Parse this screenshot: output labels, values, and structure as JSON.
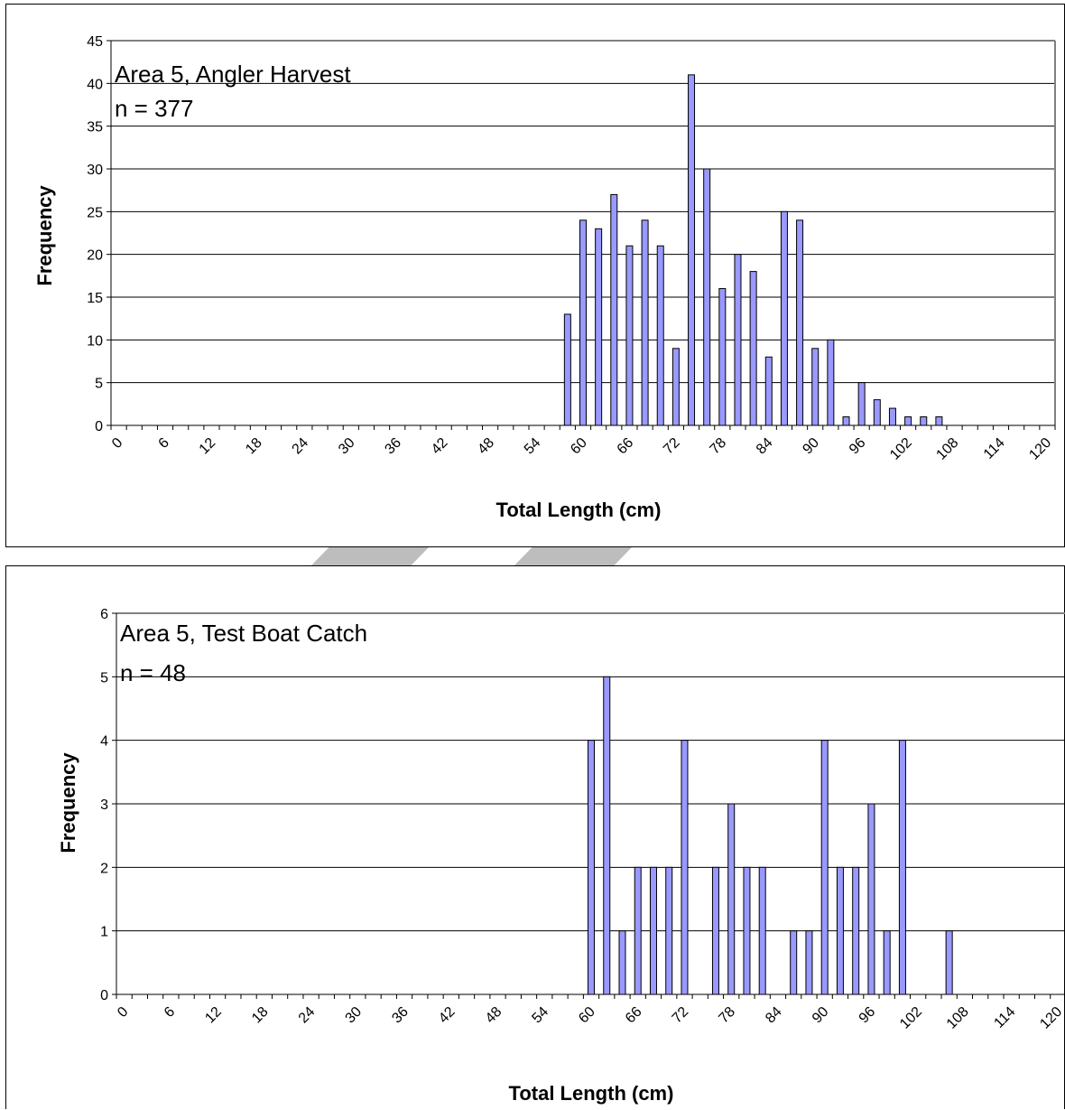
{
  "chart_data": [
    {
      "type": "bar",
      "title": "",
      "annotation": {
        "line1": "Area 5, Angler Harvest",
        "line2": "n = 377"
      },
      "xlabel": "Total Length (cm)",
      "ylabel": "Frequency",
      "xlim": [
        0,
        122
      ],
      "ylim": [
        0,
        45
      ],
      "yticks": [
        0,
        5,
        10,
        15,
        20,
        25,
        30,
        35,
        40,
        45
      ],
      "xtick_labels": [
        "0",
        "6",
        "12",
        "18",
        "24",
        "30",
        "36",
        "42",
        "48",
        "54",
        "60",
        "66",
        "72",
        "78",
        "84",
        "90",
        "96",
        "102",
        "108",
        "114",
        "120"
      ],
      "grid": true,
      "bar_color": "#9999ff",
      "x": [
        58,
        60,
        62,
        64,
        66,
        68,
        70,
        72,
        74,
        76,
        78,
        80,
        82,
        84,
        86,
        88,
        90,
        92,
        94,
        96,
        98,
        100,
        102,
        104,
        106
      ],
      "values": [
        13,
        24,
        23,
        27,
        21,
        24,
        21,
        9,
        41,
        30,
        16,
        20,
        18,
        8,
        25,
        24,
        9,
        10,
        1,
        5,
        3,
        2,
        1,
        1,
        1
      ]
    },
    {
      "type": "bar",
      "title": "",
      "annotation": {
        "line1": "Area 5, Test Boat Catch",
        "line2": "n = 48"
      },
      "xlabel": "Total Length (cm)",
      "ylabel": "Frequency",
      "xlim": [
        0,
        122
      ],
      "ylim": [
        0,
        6
      ],
      "yticks": [
        0,
        1,
        2,
        3,
        4,
        5,
        6
      ],
      "xtick_labels": [
        "0",
        "6",
        "12",
        "18",
        "24",
        "30",
        "36",
        "42",
        "48",
        "54",
        "60",
        "66",
        "72",
        "78",
        "84",
        "90",
        "96",
        "102",
        "108",
        "114",
        "120"
      ],
      "grid": true,
      "bar_color": "#9999ff",
      "x": [
        60,
        62,
        64,
        66,
        68,
        70,
        72,
        76,
        78,
        80,
        82,
        86,
        88,
        90,
        92,
        94,
        96,
        98,
        100,
        106
      ],
      "values": [
        4,
        5,
        1,
        2,
        2,
        2,
        4,
        2,
        3,
        2,
        2,
        1,
        1,
        4,
        2,
        2,
        3,
        1,
        4,
        1
      ]
    }
  ]
}
